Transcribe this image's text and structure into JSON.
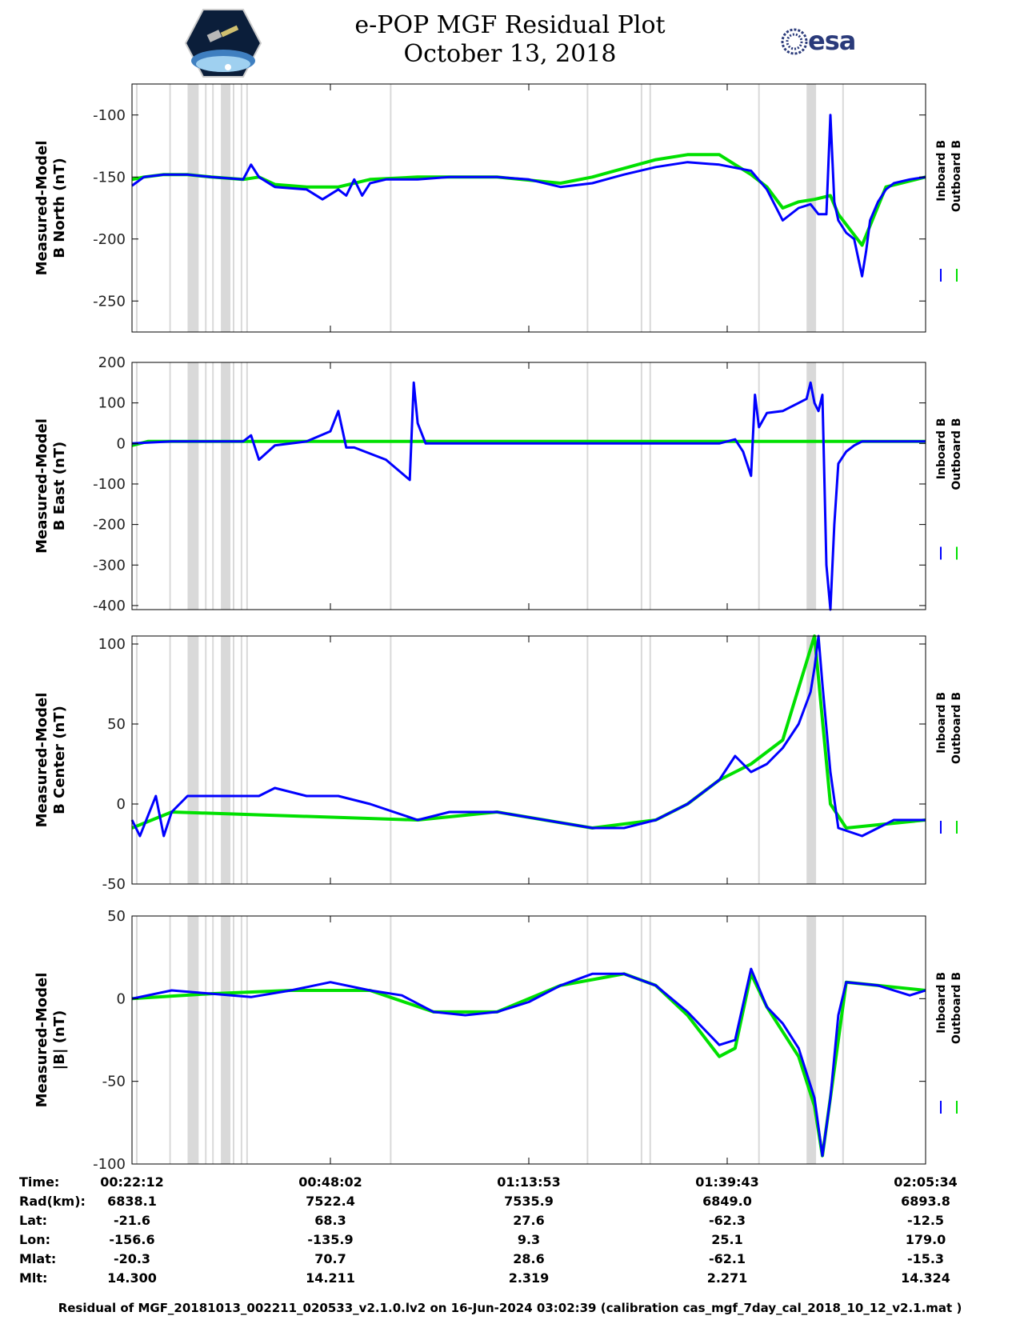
{
  "header": {
    "title_line1": "e-POP MGF Residual Plot",
    "title_line2": "October 13, 2018",
    "mission_logo_icon": "cassiope-mission-logo",
    "esa_logo_text": "esa"
  },
  "colors": {
    "inboard": "#0000ff",
    "outboard": "#00e000",
    "gap_shading": "#d9d9d9"
  },
  "legend": {
    "inboard": "Inboard B",
    "outboard": "Outboard B"
  },
  "chart_data": [
    {
      "type": "line",
      "ylabel_line1": "Measured-Model",
      "ylabel_line2": "B North (nT)",
      "ylim": [
        -275,
        -75
      ],
      "yticks": [
        -100,
        -150,
        -200,
        -250
      ],
      "series": [
        {
          "name": "Inboard B",
          "x": [
            0.0,
            1.5,
            4.0,
            7.0,
            10.0,
            14.0,
            15.0,
            16.0,
            18.0,
            22.0,
            24.0,
            26.0,
            27.0,
            28.0,
            29.0,
            30.0,
            32.0,
            36.0,
            40.0,
            46.0,
            50.0,
            54.0,
            58.0,
            62.0,
            66.0,
            70.0,
            74.0,
            78.0,
            80.0,
            82.0,
            84.0,
            85.5,
            86.5,
            87.5,
            88.0,
            88.5,
            89.0,
            90.0,
            91.0,
            92.0,
            92.5,
            93.0,
            94.0,
            95.0,
            96.0,
            98.0,
            100.0
          ],
          "y": [
            -157,
            -150,
            -148,
            -148,
            -150,
            -152,
            -140,
            -150,
            -158,
            -160,
            -168,
            -160,
            -165,
            -152,
            -165,
            -155,
            -152,
            -152,
            -150,
            -150,
            -152,
            -158,
            -155,
            -148,
            -142,
            -138,
            -140,
            -145,
            -160,
            -185,
            -175,
            -172,
            -180,
            -180,
            -100,
            -170,
            -185,
            -195,
            -200,
            -230,
            -210,
            -185,
            -170,
            -160,
            -155,
            -152,
            -150
          ]
        },
        {
          "name": "Outboard B",
          "x": [
            0.0,
            1.5,
            4.0,
            7.0,
            10.0,
            14.0,
            16.0,
            18.0,
            22.0,
            26.0,
            30.0,
            36.0,
            46.0,
            54.0,
            58.0,
            62.0,
            66.0,
            70.0,
            74.0,
            76.0,
            78.0,
            80.0,
            82.0,
            84.0,
            86.0,
            88.0,
            89.0,
            92.0,
            95.0,
            100.0
          ],
          "y": [
            -152,
            -150,
            -148,
            -148,
            -150,
            -152,
            -150,
            -156,
            -158,
            -158,
            -152,
            -150,
            -150,
            -155,
            -150,
            -143,
            -136,
            -132,
            -132,
            -140,
            -148,
            -158,
            -175,
            -170,
            -168,
            -165,
            -180,
            -205,
            -158,
            -150
          ]
        }
      ]
    },
    {
      "type": "line",
      "ylabel_line1": "Measured-Model",
      "ylabel_line2": "B East (nT)",
      "ylim": [
        -410,
        200
      ],
      "yticks": [
        200,
        100,
        0,
        -100,
        -200,
        -300,
        -400
      ],
      "series": [
        {
          "name": "Inboard B",
          "x": [
            0.0,
            5.0,
            10.0,
            14.0,
            15.0,
            16.0,
            18.0,
            22.0,
            25.0,
            26.0,
            27.0,
            28.0,
            32.0,
            35.0,
            35.5,
            36.0,
            37.0,
            38.0,
            42.0,
            46.0,
            54.0,
            62.0,
            66.0,
            70.0,
            74.0,
            76.0,
            77.0,
            78.0,
            78.5,
            79.0,
            80.0,
            82.0,
            83.0,
            84.0,
            85.0,
            85.5,
            86.0,
            86.5,
            87.0,
            87.5,
            88.0,
            88.5,
            89.0,
            90.0,
            91.0,
            92.0,
            93.0,
            96.0,
            100.0
          ],
          "y": [
            0,
            5,
            5,
            5,
            20,
            -40,
            -5,
            5,
            30,
            80,
            -10,
            -10,
            -40,
            -90,
            150,
            50,
            0,
            0,
            0,
            0,
            0,
            0,
            0,
            0,
            0,
            10,
            -20,
            -80,
            120,
            40,
            75,
            80,
            90,
            100,
            110,
            150,
            100,
            80,
            120,
            -300,
            -420,
            -200,
            -50,
            -20,
            -5,
            5,
            5,
            5,
            5
          ]
        },
        {
          "name": "Outboard B",
          "x": [
            0.0,
            2.0,
            5.0,
            100.0
          ],
          "y": [
            -5,
            5,
            5,
            5
          ]
        }
      ]
    },
    {
      "type": "line",
      "ylabel_line1": "Measured-Model",
      "ylabel_line2": "B Center (nT)",
      "ylim": [
        -50,
        105
      ],
      "yticks": [
        100,
        50,
        0,
        -50
      ],
      "series": [
        {
          "name": "Inboard B",
          "x": [
            0.0,
            1.0,
            3.0,
            4.0,
            5.0,
            7.0,
            10.0,
            14.0,
            16.0,
            18.0,
            22.0,
            26.0,
            30.0,
            36.0,
            40.0,
            46.0,
            52.0,
            58.0,
            62.0,
            66.0,
            70.0,
            74.0,
            76.0,
            78.0,
            80.0,
            82.0,
            84.0,
            85.5,
            86.0,
            86.5,
            87.0,
            88.0,
            89.0,
            92.0,
            96.0,
            100.0
          ],
          "y": [
            -10,
            -20,
            5,
            -20,
            -5,
            5,
            5,
            5,
            5,
            10,
            5,
            5,
            0,
            -10,
            -5,
            -5,
            -10,
            -15,
            -15,
            -10,
            0,
            15,
            30,
            20,
            25,
            35,
            50,
            70,
            85,
            105,
            75,
            20,
            -15,
            -20,
            -10,
            -10
          ]
        },
        {
          "name": "Outboard B",
          "x": [
            0.0,
            5.0,
            36.0,
            46.0,
            58.0,
            66.0,
            70.0,
            74.0,
            78.0,
            82.0,
            86.0,
            88.0,
            90.0,
            100.0
          ],
          "y": [
            -15,
            -5,
            -10,
            -5,
            -15,
            -10,
            0,
            15,
            25,
            40,
            105,
            0,
            -15,
            -10
          ]
        }
      ]
    },
    {
      "type": "line",
      "ylabel_line1": "Measured-Model",
      "ylabel_line2": "|B| (nT)",
      "ylim": [
        -100,
        50
      ],
      "yticks": [
        50,
        0,
        -50,
        -100
      ],
      "series": [
        {
          "name": "Inboard B",
          "x": [
            0.0,
            5.0,
            10.0,
            15.0,
            20.0,
            25.0,
            30.0,
            34.0,
            38.0,
            42.0,
            46.0,
            50.0,
            54.0,
            58.0,
            62.0,
            66.0,
            70.0,
            74.0,
            76.0,
            78.0,
            80.0,
            82.0,
            84.0,
            86.0,
            87.0,
            88.0,
            89.0,
            90.0,
            94.0,
            98.0,
            100.0
          ],
          "y": [
            0,
            5,
            3,
            1,
            5,
            10,
            5,
            2,
            -8,
            -10,
            -8,
            -2,
            8,
            15,
            15,
            8,
            -8,
            -28,
            -25,
            18,
            -5,
            -15,
            -30,
            -60,
            -95,
            -60,
            -10,
            10,
            8,
            2,
            5
          ]
        },
        {
          "name": "Outboard B",
          "x": [
            0.0,
            10.0,
            20.0,
            30.0,
            38.0,
            46.0,
            54.0,
            62.0,
            66.0,
            70.0,
            74.0,
            76.0,
            78.0,
            80.0,
            82.0,
            84.0,
            86.0,
            87.0,
            88.0,
            90.0,
            100.0
          ],
          "y": [
            0,
            3,
            5,
            5,
            -8,
            -8,
            8,
            15,
            8,
            -10,
            -35,
            -30,
            15,
            -5,
            -20,
            -35,
            -65,
            -95,
            -60,
            10,
            5
          ]
        }
      ]
    }
  ],
  "x_axis": {
    "ticks": [
      0,
      25,
      50,
      75,
      100
    ],
    "rows": [
      {
        "label": "Time:",
        "values": [
          "00:22:12",
          "00:48:02",
          "01:13:53",
          "01:39:43",
          "02:05:34"
        ]
      },
      {
        "label": "Rad(km):",
        "values": [
          "6838.1",
          "7522.4",
          "7535.9",
          "6849.0",
          "6893.8"
        ]
      },
      {
        "label": "Lat:",
        "values": [
          "-21.6",
          "68.3",
          "27.6",
          "-62.3",
          "-12.5"
        ]
      },
      {
        "label": "Lon:",
        "values": [
          "-156.6",
          "-135.9",
          "9.3",
          "25.1",
          "179.0"
        ]
      },
      {
        "label": "Mlat:",
        "values": [
          "-20.3",
          "70.7",
          "28.6",
          "-62.1",
          "-15.3"
        ]
      },
      {
        "label": "Mlt:",
        "values": [
          "14.300",
          "14.211",
          "2.319",
          "2.271",
          "14.324"
        ]
      }
    ]
  },
  "gap_bands": [
    [
      7.0,
      8.4
    ],
    [
      11.2,
      12.4
    ],
    [
      85.0,
      86.2
    ]
  ],
  "gap_lines": [
    0.6,
    4.8,
    9.3,
    10.2,
    12.8,
    13.8,
    14.5,
    32.6,
    57.4,
    64.2,
    65.3,
    79.0,
    89.6
  ],
  "footer": "Residual of MGF_20181013_002211_020533_v2.1.0.lv2 on 16-Jun-2024 03:02:39 (calibration cas_mgf_7day_cal_2018_10_12_v2.1.mat )"
}
